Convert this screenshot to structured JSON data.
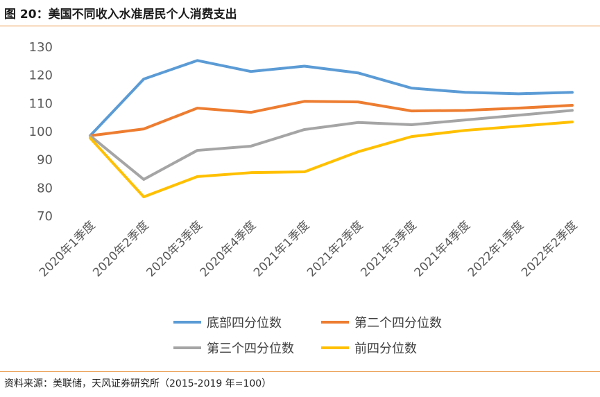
{
  "title": "图 20：美国不同收入水准居民个人消费支出",
  "source": "资料来源：美联储，天风证券研究所（2015-2019 年=100）",
  "chart_data": {
    "type": "line",
    "title": "",
    "xlabel": "",
    "ylabel": "",
    "ylim": [
      70,
      130
    ],
    "yticks": [
      70,
      80,
      90,
      100,
      110,
      120,
      130
    ],
    "grid": false,
    "legend_position": "bottom",
    "categories": [
      "2020年1季度",
      "2020年2季度",
      "2020年3季度",
      "2020年4季度",
      "2021年1季度",
      "2021年2季度",
      "2021年3季度",
      "2021年4季度",
      "2022年1季度",
      "2022年2季度"
    ],
    "series": [
      {
        "name": "底部四分位数",
        "color": "#5b9bd5",
        "values": [
          98.3,
          118.4,
          125,
          121.1,
          123,
          120.6,
          115.2,
          113.7,
          113.2,
          113.7
        ]
      },
      {
        "name": "第二个四分位数",
        "color": "#ed7d31",
        "values": [
          98.3,
          100.7,
          108.1,
          106.6,
          110.5,
          110.3,
          107.1,
          107.3,
          108.1,
          109.1
        ]
      },
      {
        "name": "第三个四分位数",
        "color": "#a5a5a5",
        "values": [
          98.3,
          82.8,
          93.1,
          94.6,
          100.5,
          103,
          102.2,
          103.9,
          105.6,
          107.3
        ]
      },
      {
        "name": "前四分位数",
        "color": "#ffc000",
        "values": [
          97.5,
          76.6,
          83.8,
          85.2,
          85.5,
          92.6,
          98,
          100.2,
          101.7,
          103.2
        ]
      }
    ]
  }
}
